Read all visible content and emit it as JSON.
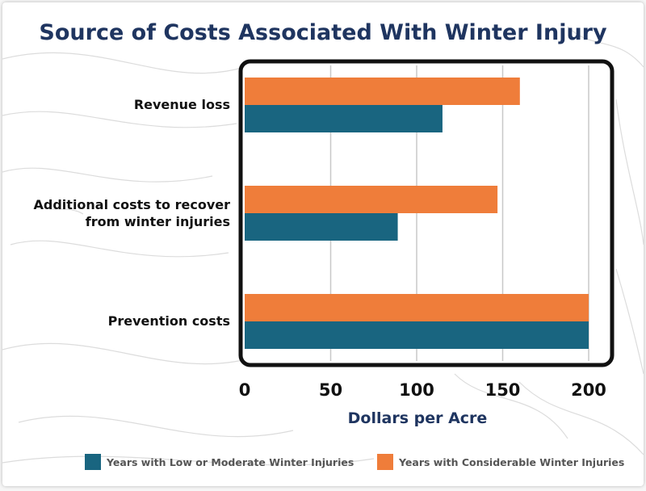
{
  "chart_data": {
    "type": "bar",
    "orientation": "horizontal",
    "title": "Source of Costs Associated With Winter Injury",
    "xlabel": "Dollars per Acre",
    "ylabel": "",
    "categories": [
      [
        "Revenue loss"
      ],
      [
        "Additional costs to recover",
        "from winter injuries"
      ],
      [
        "Prevention costs"
      ]
    ],
    "series": [
      {
        "name": "Years with Considerable Winter Injuries",
        "color": "#ef7d3a",
        "values": [
          160,
          147,
          200
        ]
      },
      {
        "name": "Years with Low or Moderate Winter Injuries",
        "color": "#196580",
        "values": [
          115,
          89,
          200
        ]
      }
    ],
    "xlim": [
      0,
      200
    ],
    "xticks": [
      0,
      50,
      100,
      150,
      200
    ],
    "grid": true,
    "legend_position": "bottom",
    "legend_order": [
      1,
      0
    ]
  }
}
